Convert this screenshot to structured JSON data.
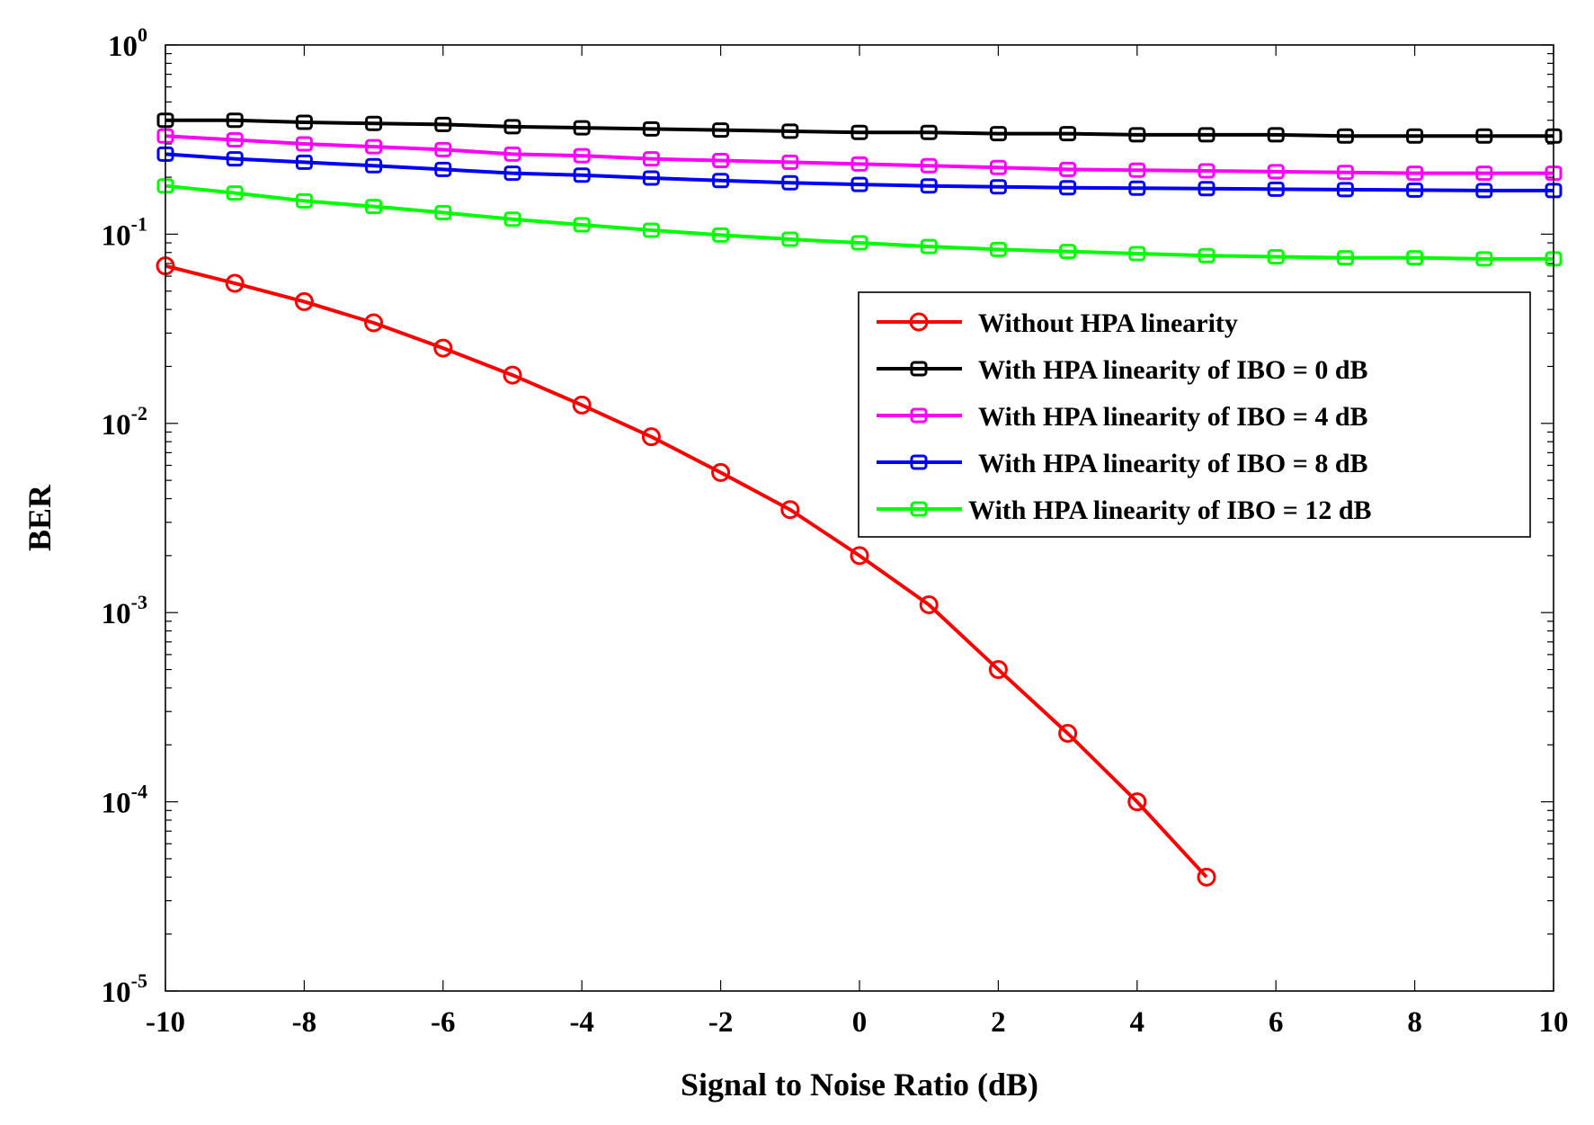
{
  "chart_data": {
    "type": "line",
    "title": "",
    "xlabel": "Signal to Noise Ratio (dB)",
    "ylabel": "BER",
    "xlim": [
      -10,
      10
    ],
    "ylim": [
      1e-05,
      1
    ],
    "yscale": "log",
    "grid": false,
    "legend_position": "upper-right",
    "x_ticks": [
      -10,
      -8,
      -6,
      -4,
      -2,
      0,
      2,
      4,
      6,
      8,
      10
    ],
    "x_tick_labels": [
      "-10",
      "-8",
      "-6",
      "-4",
      "-2",
      "0",
      "2",
      "4",
      "6",
      "8",
      "10"
    ],
    "y_tick_exponents": [
      "0",
      "-1",
      "-2",
      "-3",
      "-4",
      "-5"
    ],
    "y_tick_base": "10",
    "series": [
      {
        "name": "Without HPA linearity",
        "color": "#ff0000",
        "marker": "circle",
        "x": [
          -10,
          -9,
          -8,
          -7,
          -6,
          -5,
          -4,
          -3,
          -2,
          -1,
          0,
          1,
          2,
          3,
          4,
          5
        ],
        "values": [
          0.068,
          0.055,
          0.044,
          0.034,
          0.025,
          0.018,
          0.0125,
          0.0085,
          0.0055,
          0.0035,
          0.002,
          0.0011,
          0.0005,
          0.00023,
          0.0001,
          4e-05
        ]
      },
      {
        "name": "With HPA linearity of IBO = 0 dB",
        "color": "#000000",
        "marker": "square",
        "x": [
          -10,
          -9,
          -8,
          -7,
          -6,
          -5,
          -4,
          -3,
          -2,
          -1,
          0,
          1,
          2,
          3,
          4,
          5,
          6,
          7,
          8,
          9,
          10
        ],
        "values": [
          0.4,
          0.4,
          0.39,
          0.385,
          0.38,
          0.37,
          0.365,
          0.36,
          0.355,
          0.35,
          0.345,
          0.345,
          0.34,
          0.34,
          0.335,
          0.335,
          0.335,
          0.33,
          0.33,
          0.33,
          0.33
        ]
      },
      {
        "name": "With HPA linearity of IBO = 4 dB",
        "color": "#ff00ff",
        "marker": "square",
        "x": [
          -10,
          -9,
          -8,
          -7,
          -6,
          -5,
          -4,
          -3,
          -2,
          -1,
          0,
          1,
          2,
          3,
          4,
          5,
          6,
          7,
          8,
          9,
          10
        ],
        "values": [
          0.33,
          0.315,
          0.3,
          0.29,
          0.28,
          0.265,
          0.26,
          0.25,
          0.245,
          0.24,
          0.235,
          0.23,
          0.225,
          0.22,
          0.218,
          0.216,
          0.214,
          0.212,
          0.21,
          0.21,
          0.21
        ]
      },
      {
        "name": "With HPA linearity of IBO = 8 dB",
        "color": "#0000ff",
        "marker": "square",
        "x": [
          -10,
          -9,
          -8,
          -7,
          -6,
          -5,
          -4,
          -3,
          -2,
          -1,
          0,
          1,
          2,
          3,
          4,
          5,
          6,
          7,
          8,
          9,
          10
        ],
        "values": [
          0.265,
          0.25,
          0.24,
          0.23,
          0.22,
          0.21,
          0.205,
          0.198,
          0.192,
          0.187,
          0.183,
          0.18,
          0.178,
          0.176,
          0.175,
          0.174,
          0.173,
          0.172,
          0.171,
          0.17,
          0.17
        ]
      },
      {
        "name": "With HPA linearity of IBO = 12 dB",
        "color": "#00ff00",
        "marker": "square",
        "x": [
          -10,
          -9,
          -8,
          -7,
          -6,
          -5,
          -4,
          -3,
          -2,
          -1,
          0,
          1,
          2,
          3,
          4,
          5,
          6,
          7,
          8,
          9,
          10
        ],
        "values": [
          0.18,
          0.165,
          0.15,
          0.14,
          0.13,
          0.12,
          0.112,
          0.105,
          0.099,
          0.094,
          0.09,
          0.086,
          0.083,
          0.081,
          0.079,
          0.077,
          0.076,
          0.075,
          0.075,
          0.074,
          0.074
        ]
      }
    ]
  }
}
